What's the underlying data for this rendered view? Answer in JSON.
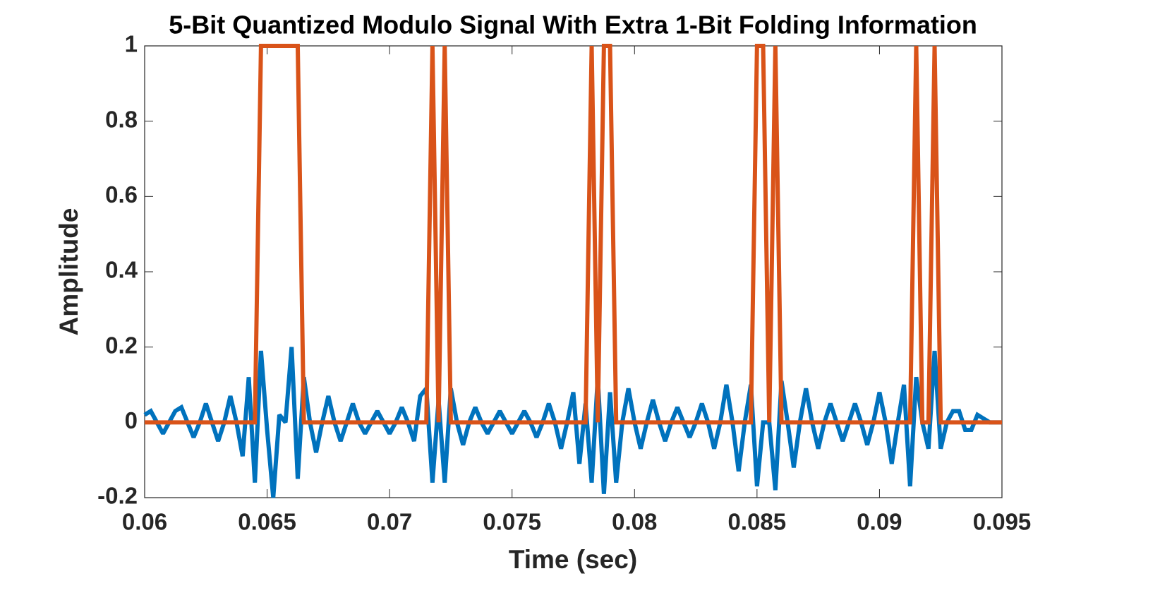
{
  "chart_data": {
    "type": "line",
    "title": "5-Bit Quantized Modulo Signal With Extra 1-Bit Folding Information",
    "xlabel": "Time (sec)",
    "ylabel": "Amplitude",
    "x": [
      0.06,
      0.06025,
      0.0605,
      0.06075,
      0.061,
      0.06125,
      0.0615,
      0.06175,
      0.062,
      0.06225,
      0.0625,
      0.06275,
      0.063,
      0.06325,
      0.0635,
      0.06375,
      0.064,
      0.06425,
      0.0645,
      0.06475,
      0.065,
      0.06525,
      0.0655,
      0.06575,
      0.066,
      0.06625,
      0.0665,
      0.06675,
      0.067,
      0.06725,
      0.0675,
      0.06775,
      0.068,
      0.06825,
      0.0685,
      0.06875,
      0.069,
      0.06925,
      0.0695,
      0.06975,
      0.07,
      0.07025,
      0.0705,
      0.07075,
      0.071,
      0.07125,
      0.0715,
      0.07175,
      0.072,
      0.07225,
      0.0725,
      0.07275,
      0.073,
      0.07325,
      0.0735,
      0.07375,
      0.074,
      0.07425,
      0.0745,
      0.07475,
      0.075,
      0.07525,
      0.0755,
      0.07575,
      0.076,
      0.07625,
      0.0765,
      0.07675,
      0.077,
      0.07725,
      0.0775,
      0.07775,
      0.078,
      0.07825,
      0.0785,
      0.07875,
      0.079,
      0.07925,
      0.0795,
      0.07975,
      0.08,
      0.08025,
      0.0805,
      0.08075,
      0.081,
      0.08125,
      0.0815,
      0.08175,
      0.082,
      0.08225,
      0.0825,
      0.08275,
      0.083,
      0.08325,
      0.0835,
      0.08375,
      0.084,
      0.08425,
      0.0845,
      0.08475,
      0.085,
      0.08525,
      0.0855,
      0.08575,
      0.086,
      0.08625,
      0.0865,
      0.08675,
      0.087,
      0.08725,
      0.0875,
      0.08775,
      0.088,
      0.08825,
      0.0885,
      0.08875,
      0.089,
      0.08925,
      0.0895,
      0.08975,
      0.09,
      0.09025,
      0.0905,
      0.09075,
      0.091,
      0.09125,
      0.0915,
      0.09175,
      0.092,
      0.09225,
      0.0925,
      0.09275,
      0.093,
      0.09325,
      0.0935,
      0.09375,
      0.094,
      0.09425,
      0.0945,
      0.09475,
      0.095
    ],
    "series": [
      {
        "color": "#0072BD",
        "values": [
          0.02,
          0.03,
          0.0,
          -0.03,
          0.0,
          0.03,
          0.04,
          0.0,
          -0.04,
          0.0,
          0.05,
          0.0,
          -0.05,
          0.0,
          0.07,
          0.0,
          -0.09,
          0.12,
          -0.16,
          0.19,
          -0.02,
          -0.2,
          0.02,
          0.0,
          0.2,
          -0.15,
          0.12,
          0.0,
          -0.08,
          0.0,
          0.07,
          0.0,
          -0.05,
          0.0,
          0.05,
          0.0,
          -0.03,
          0.0,
          0.03,
          0.0,
          -0.03,
          0.0,
          0.04,
          0.0,
          -0.05,
          0.07,
          0.09,
          -0.16,
          0.06,
          -0.16,
          0.09,
          0.0,
          -0.06,
          0.0,
          0.04,
          0.0,
          -0.03,
          0.0,
          0.03,
          0.0,
          -0.03,
          0.0,
          0.03,
          0.0,
          -0.04,
          0.0,
          0.05,
          0.0,
          -0.07,
          0.0,
          0.08,
          -0.11,
          0.05,
          -0.16,
          0.12,
          -0.19,
          0.08,
          -0.16,
          0.0,
          0.09,
          0.0,
          -0.07,
          0.0,
          0.06,
          0.0,
          -0.05,
          0.0,
          0.04,
          0.0,
          -0.04,
          0.0,
          0.05,
          0.0,
          -0.07,
          0.0,
          0.1,
          0.0,
          -0.13,
          0.0,
          0.1,
          -0.17,
          0.0,
          0.0,
          -0.18,
          0.11,
          0.0,
          -0.12,
          0.0,
          0.09,
          0.0,
          -0.07,
          0.0,
          0.05,
          0.0,
          -0.05,
          0.0,
          0.05,
          0.0,
          -0.06,
          0.0,
          0.08,
          0.0,
          -0.11,
          0.0,
          0.1,
          -0.17,
          0.12,
          0.0,
          -0.07,
          0.19,
          -0.07,
          0.0,
          0.03,
          0.03,
          -0.02,
          -0.02,
          0.02,
          0.01,
          0.0,
          0.0,
          0.0
        ]
      },
      {
        "color": "#D95319",
        "values": [
          0,
          0,
          0,
          0,
          0,
          0,
          0,
          0,
          0,
          0,
          0,
          0,
          0,
          0,
          0,
          0,
          0,
          0,
          0,
          1,
          1,
          1,
          1,
          1,
          1,
          1,
          0,
          0,
          0,
          0,
          0,
          0,
          0,
          0,
          0,
          0,
          0,
          0,
          0,
          0,
          0,
          0,
          0,
          0,
          0,
          0,
          0,
          1,
          0,
          1,
          0,
          0,
          0,
          0,
          0,
          0,
          0,
          0,
          0,
          0,
          0,
          0,
          0,
          0,
          0,
          0,
          0,
          0,
          0,
          0,
          0,
          0,
          0,
          1,
          0,
          1,
          1,
          0,
          0,
          0,
          0,
          0,
          0,
          0,
          0,
          0,
          0,
          0,
          0,
          0,
          0,
          0,
          0,
          0,
          0,
          0,
          0,
          0,
          0,
          0,
          1,
          1,
          0,
          1,
          0,
          0,
          0,
          0,
          0,
          0,
          0,
          0,
          0,
          0,
          0,
          0,
          0,
          0,
          0,
          0,
          0,
          0,
          0,
          0,
          0,
          0,
          1,
          0,
          0,
          1,
          0,
          0,
          0,
          0,
          0,
          0,
          0,
          0,
          0,
          0,
          0
        ]
      }
    ],
    "xlim": [
      0.06,
      0.095
    ],
    "xticks": [
      0.06,
      0.065,
      0.07,
      0.075,
      0.08,
      0.085,
      0.09,
      0.095
    ],
    "ylim": [
      -0.2,
      1
    ],
    "yticks": [
      -0.2,
      0,
      0.2,
      0.4,
      0.6,
      0.8,
      1
    ],
    "grid": false
  }
}
